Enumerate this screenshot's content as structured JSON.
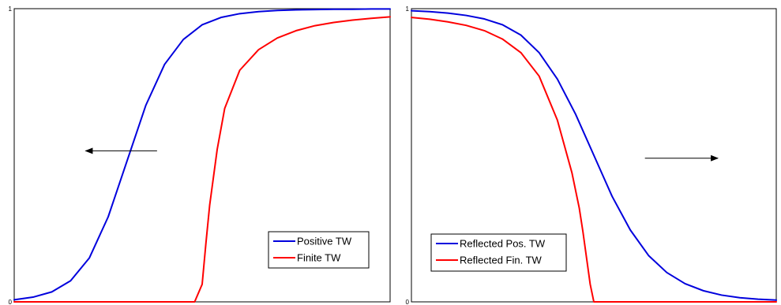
{
  "chart_data": [
    {
      "type": "line",
      "xlim": [
        0,
        1
      ],
      "ylim": [
        0,
        1
      ],
      "y_ticks": [
        {
          "value": 0,
          "label": "0"
        },
        {
          "value": 1,
          "label": "1"
        }
      ],
      "grid": false,
      "legend_position": "bottom-right",
      "series": [
        {
          "name": "Positive TW",
          "color": "#0000dd",
          "x": [
            0.0,
            0.05,
            0.1,
            0.15,
            0.2,
            0.25,
            0.3,
            0.35,
            0.4,
            0.45,
            0.5,
            0.55,
            0.6,
            0.65,
            0.7,
            0.75,
            0.8,
            0.85,
            0.9,
            0.95,
            1.0
          ],
          "y": [
            0.007,
            0.016,
            0.034,
            0.072,
            0.15,
            0.29,
            0.48,
            0.67,
            0.81,
            0.895,
            0.945,
            0.97,
            0.983,
            0.99,
            0.994,
            0.996,
            0.997,
            0.998,
            0.998,
            0.999,
            0.999
          ]
        },
        {
          "name": "Finite TW",
          "color": "#ff0000",
          "x": [
            0.0,
            0.1,
            0.2,
            0.3,
            0.4,
            0.48,
            0.5,
            0.51,
            0.52,
            0.54,
            0.56,
            0.6,
            0.65,
            0.7,
            0.75,
            0.8,
            0.85,
            0.9,
            0.95,
            1.0
          ],
          "y": [
            0.0,
            0.0,
            0.0,
            0.0,
            0.0,
            0.0,
            0.06,
            0.2,
            0.33,
            0.52,
            0.66,
            0.79,
            0.86,
            0.9,
            0.925,
            0.942,
            0.953,
            0.961,
            0.967,
            0.972
          ]
        }
      ],
      "annotations": [
        {
          "type": "arrow",
          "direction": "left",
          "from": [
            0.38,
            0.515
          ],
          "to": [
            0.19,
            0.515
          ]
        }
      ]
    },
    {
      "type": "line",
      "xlim": [
        0,
        1
      ],
      "ylim": [
        0,
        1
      ],
      "y_ticks": [
        {
          "value": 0,
          "label": "0"
        },
        {
          "value": 1,
          "label": "1"
        }
      ],
      "grid": false,
      "legend_position": "bottom-left",
      "series": [
        {
          "name": "Reflected Pos. TW",
          "color": "#0000dd",
          "x": [
            0.0,
            0.05,
            0.1,
            0.15,
            0.2,
            0.25,
            0.3,
            0.35,
            0.4,
            0.45,
            0.5,
            0.55,
            0.6,
            0.65,
            0.7,
            0.75,
            0.8,
            0.85,
            0.9,
            0.95,
            1.0
          ],
          "y": [
            0.993,
            0.99,
            0.985,
            0.977,
            0.965,
            0.945,
            0.91,
            0.85,
            0.76,
            0.64,
            0.5,
            0.36,
            0.245,
            0.158,
            0.1,
            0.062,
            0.038,
            0.023,
            0.014,
            0.009,
            0.006
          ]
        },
        {
          "name": "Reflected Fin. TW",
          "color": "#ff0000",
          "x": [
            0.0,
            0.05,
            0.1,
            0.15,
            0.2,
            0.25,
            0.3,
            0.35,
            0.4,
            0.44,
            0.46,
            0.47,
            0.48,
            0.49,
            0.5,
            0.6,
            0.7,
            0.8,
            0.9,
            1.0
          ],
          "y": [
            0.97,
            0.964,
            0.955,
            0.943,
            0.925,
            0.896,
            0.85,
            0.77,
            0.62,
            0.44,
            0.32,
            0.24,
            0.15,
            0.06,
            0.0,
            0.0,
            0.0,
            0.0,
            0.0,
            0.0
          ]
        }
      ],
      "annotations": [
        {
          "type": "arrow",
          "direction": "right",
          "from": [
            0.64,
            0.49
          ],
          "to": [
            0.84,
            0.49
          ]
        }
      ]
    }
  ]
}
